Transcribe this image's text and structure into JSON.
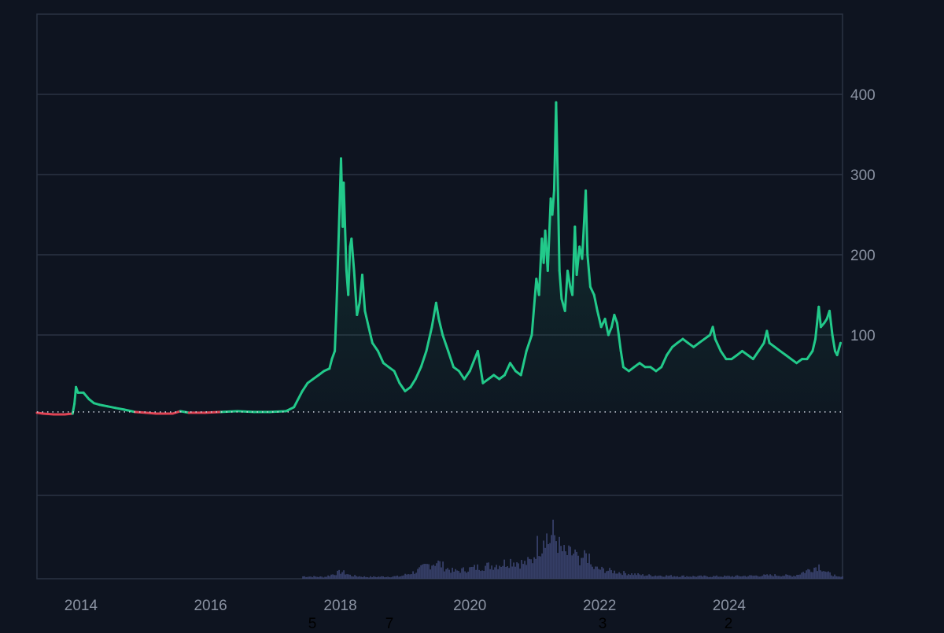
{
  "colors": {
    "background": "#0e1420",
    "grid": "#2a3342",
    "axis_text": "#8b93a3",
    "price_up": "#22c98a",
    "price_down": "#e04455",
    "volume": "#3b4470",
    "baseline": "#cfd5e0"
  },
  "chart_data": {
    "type": "area",
    "title": "",
    "xlabel": "",
    "ylabel": "",
    "x_ticks": [
      "2014",
      "2016",
      "2018",
      "2020",
      "2022",
      "2024"
    ],
    "y_ticks": [
      "100",
      "200",
      "300",
      "400"
    ],
    "y_range": [
      -100,
      500
    ],
    "baseline": 4,
    "grid": true,
    "y_axis_side": "right",
    "bottom_markers": [
      "5",
      "7",
      "3",
      "2"
    ],
    "series": [
      {
        "type": "line",
        "points": [
          [
            "2013-04-28",
            3
          ],
          [
            "2013-06-01",
            2
          ],
          [
            "2013-08-01",
            1
          ],
          [
            "2013-10-01",
            1
          ],
          [
            "2013-11-15",
            2
          ],
          [
            "2013-11-25",
            14
          ],
          [
            "2013-12-04",
            35
          ],
          [
            "2013-12-15",
            28
          ],
          [
            "2014-01-15",
            28
          ],
          [
            "2014-02-15",
            20
          ],
          [
            "2014-03-15",
            15
          ],
          [
            "2014-04-15",
            13
          ],
          [
            "2014-06-01",
            11
          ],
          [
            "2014-07-15",
            9
          ],
          [
            "2014-09-01",
            7
          ],
          [
            "2014-11-01",
            4
          ],
          [
            "2015-01-01",
            3
          ],
          [
            "2015-03-01",
            2
          ],
          [
            "2015-06-01",
            2
          ],
          [
            "2015-07-15",
            5
          ],
          [
            "2015-09-01",
            3
          ],
          [
            "2015-12-01",
            3
          ],
          [
            "2016-03-01",
            4
          ],
          [
            "2016-06-01",
            5
          ],
          [
            "2016-09-01",
            4
          ],
          [
            "2016-12-01",
            4
          ],
          [
            "2017-03-01",
            5
          ],
          [
            "2017-04-15",
            10
          ],
          [
            "2017-06-01",
            30
          ],
          [
            "2017-07-01",
            40
          ],
          [
            "2017-08-01",
            45
          ],
          [
            "2017-09-01",
            50
          ],
          [
            "2017-10-01",
            55
          ],
          [
            "2017-11-01",
            58
          ],
          [
            "2017-11-15",
            70
          ],
          [
            "2017-12-01",
            80
          ],
          [
            "2017-12-10",
            130
          ],
          [
            "2017-12-20",
            200
          ],
          [
            "2018-01-05",
            320
          ],
          [
            "2018-01-15",
            235
          ],
          [
            "2018-01-20",
            290
          ],
          [
            "2018-02-05",
            180
          ],
          [
            "2018-02-15",
            150
          ],
          [
            "2018-02-25",
            210
          ],
          [
            "2018-03-05",
            220
          ],
          [
            "2018-03-20",
            180
          ],
          [
            "2018-04-05",
            125
          ],
          [
            "2018-04-20",
            140
          ],
          [
            "2018-05-05",
            175
          ],
          [
            "2018-05-20",
            130
          ],
          [
            "2018-06-10",
            110
          ],
          [
            "2018-07-01",
            90
          ],
          [
            "2018-08-01",
            80
          ],
          [
            "2018-09-01",
            65
          ],
          [
            "2018-10-01",
            60
          ],
          [
            "2018-11-01",
            55
          ],
          [
            "2018-12-01",
            40
          ],
          [
            "2019-01-01",
            30
          ],
          [
            "2019-02-01",
            35
          ],
          [
            "2019-03-01",
            45
          ],
          [
            "2019-04-01",
            60
          ],
          [
            "2019-05-01",
            80
          ],
          [
            "2019-06-01",
            110
          ],
          [
            "2019-06-25",
            140
          ],
          [
            "2019-07-10",
            120
          ],
          [
            "2019-08-01",
            100
          ],
          [
            "2019-09-01",
            80
          ],
          [
            "2019-10-01",
            60
          ],
          [
            "2019-11-01",
            55
          ],
          [
            "2019-12-01",
            45
          ],
          [
            "2020-01-01",
            55
          ],
          [
            "2020-02-15",
            80
          ],
          [
            "2020-03-15",
            40
          ],
          [
            "2020-04-15",
            45
          ],
          [
            "2020-05-15",
            50
          ],
          [
            "2020-06-15",
            45
          ],
          [
            "2020-07-15",
            50
          ],
          [
            "2020-08-15",
            65
          ],
          [
            "2020-09-15",
            55
          ],
          [
            "2020-10-15",
            50
          ],
          [
            "2020-11-15",
            80
          ],
          [
            "2020-12-15",
            100
          ],
          [
            "2021-01-10",
            170
          ],
          [
            "2021-01-25",
            150
          ],
          [
            "2021-02-10",
            220
          ],
          [
            "2021-02-20",
            190
          ],
          [
            "2021-03-01",
            230
          ],
          [
            "2021-03-15",
            180
          ],
          [
            "2021-04-01",
            270
          ],
          [
            "2021-04-10",
            250
          ],
          [
            "2021-04-20",
            280
          ],
          [
            "2021-05-01",
            390
          ],
          [
            "2021-05-10",
            300
          ],
          [
            "2021-05-20",
            180
          ],
          [
            "2021-06-01",
            145
          ],
          [
            "2021-06-20",
            130
          ],
          [
            "2021-07-05",
            180
          ],
          [
            "2021-07-20",
            160
          ],
          [
            "2021-08-01",
            150
          ],
          [
            "2021-08-15",
            235
          ],
          [
            "2021-08-25",
            175
          ],
          [
            "2021-09-10",
            210
          ],
          [
            "2021-09-25",
            195
          ],
          [
            "2021-10-15",
            280
          ],
          [
            "2021-10-25",
            200
          ],
          [
            "2021-11-10",
            160
          ],
          [
            "2021-12-01",
            150
          ],
          [
            "2021-12-20",
            130
          ],
          [
            "2022-01-10",
            110
          ],
          [
            "2022-02-01",
            120
          ],
          [
            "2022-02-20",
            100
          ],
          [
            "2022-03-10",
            110
          ],
          [
            "2022-03-25",
            125
          ],
          [
            "2022-04-10",
            115
          ],
          [
            "2022-05-01",
            80
          ],
          [
            "2022-05-15",
            60
          ],
          [
            "2022-06-15",
            55
          ],
          [
            "2022-07-15",
            60
          ],
          [
            "2022-08-15",
            65
          ],
          [
            "2022-09-15",
            60
          ],
          [
            "2022-10-15",
            60
          ],
          [
            "2022-11-15",
            55
          ],
          [
            "2022-12-15",
            60
          ],
          [
            "2023-01-15",
            75
          ],
          [
            "2023-02-15",
            85
          ],
          [
            "2023-03-15",
            90
          ],
          [
            "2023-04-15",
            95
          ],
          [
            "2023-05-15",
            90
          ],
          [
            "2023-06-15",
            85
          ],
          [
            "2023-07-15",
            90
          ],
          [
            "2023-08-15",
            95
          ],
          [
            "2023-09-15",
            100
          ],
          [
            "2023-10-01",
            110
          ],
          [
            "2023-10-15",
            95
          ],
          [
            "2023-11-15",
            80
          ],
          [
            "2023-12-15",
            70
          ],
          [
            "2024-01-15",
            70
          ],
          [
            "2024-02-15",
            75
          ],
          [
            "2024-03-15",
            80
          ],
          [
            "2024-04-15",
            75
          ],
          [
            "2024-05-15",
            70
          ],
          [
            "2024-06-15",
            80
          ],
          [
            "2024-07-15",
            90
          ],
          [
            "2024-08-01",
            105
          ],
          [
            "2024-08-15",
            90
          ],
          [
            "2024-09-15",
            85
          ],
          [
            "2024-10-15",
            80
          ],
          [
            "2024-11-15",
            75
          ],
          [
            "2024-12-15",
            70
          ],
          [
            "2025-01-15",
            65
          ],
          [
            "2025-02-15",
            70
          ],
          [
            "2025-03-15",
            70
          ],
          [
            "2025-04-15",
            80
          ],
          [
            "2025-05-01",
            95
          ],
          [
            "2025-05-20",
            135
          ],
          [
            "2025-06-01",
            110
          ],
          [
            "2025-06-20",
            115
          ],
          [
            "2025-07-05",
            120
          ],
          [
            "2025-07-20",
            130
          ],
          [
            "2025-08-05",
            100
          ],
          [
            "2025-08-20",
            80
          ],
          [
            "2025-09-01",
            75
          ],
          [
            "2025-09-20",
            90
          ]
        ]
      },
      {
        "type": "volume",
        "points": [
          [
            "2017-06-01",
            0.04
          ],
          [
            "2017-10-01",
            0.03
          ],
          [
            "2018-01-05",
            0.12
          ],
          [
            "2018-03-01",
            0.05
          ],
          [
            "2018-06-01",
            0.03
          ],
          [
            "2018-12-01",
            0.04
          ],
          [
            "2019-03-01",
            0.12
          ],
          [
            "2019-05-01",
            0.22
          ],
          [
            "2019-06-25",
            0.28
          ],
          [
            "2019-08-15",
            0.18
          ],
          [
            "2019-10-01",
            0.12
          ],
          [
            "2019-12-01",
            0.15
          ],
          [
            "2020-03-01",
            0.2
          ],
          [
            "2020-05-01",
            0.22
          ],
          [
            "2020-07-01",
            0.25
          ],
          [
            "2020-08-15",
            0.3
          ],
          [
            "2020-09-15",
            0.28
          ],
          [
            "2020-11-01",
            0.25
          ],
          [
            "2020-12-15",
            0.3
          ],
          [
            "2021-01-10",
            0.55
          ],
          [
            "2021-02-10",
            0.55
          ],
          [
            "2021-02-20",
            0.85
          ],
          [
            "2021-03-15",
            0.6
          ],
          [
            "2021-04-10",
            0.75
          ],
          [
            "2021-05-01",
            0.65
          ],
          [
            "2021-05-20",
            0.5
          ],
          [
            "2021-06-20",
            0.4
          ],
          [
            "2021-08-15",
            0.42
          ],
          [
            "2021-09-10",
            0.2
          ],
          [
            "2021-10-15",
            0.45
          ],
          [
            "2021-11-15",
            0.18
          ],
          [
            "2022-01-15",
            0.15
          ],
          [
            "2022-05-01",
            0.1
          ],
          [
            "2022-09-01",
            0.06
          ],
          [
            "2023-01-01",
            0.05
          ],
          [
            "2023-06-01",
            0.04
          ],
          [
            "2024-01-01",
            0.04
          ],
          [
            "2024-06-01",
            0.05
          ],
          [
            "2024-09-01",
            0.06
          ],
          [
            "2025-01-01",
            0.05
          ],
          [
            "2025-05-20",
            0.22
          ],
          [
            "2025-07-01",
            0.1
          ],
          [
            "2025-08-20",
            0.05
          ]
        ]
      }
    ]
  }
}
